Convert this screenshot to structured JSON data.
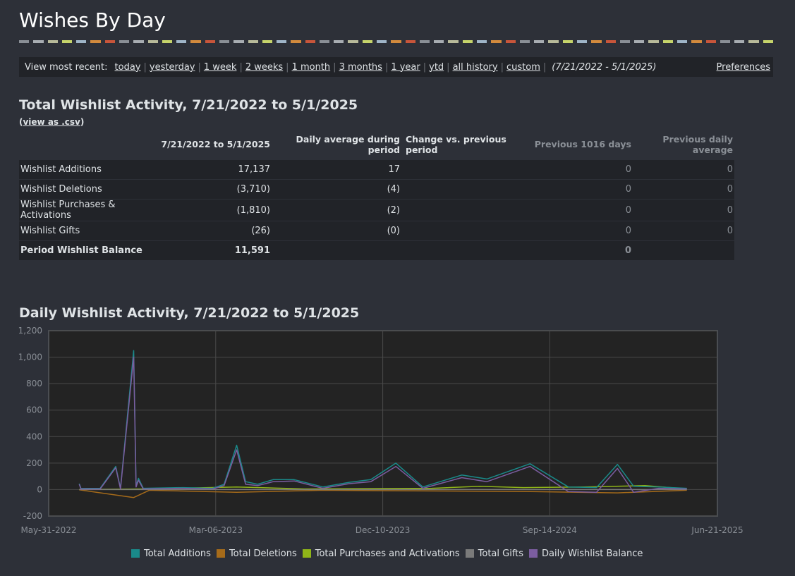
{
  "page": {
    "title": "Wishes By Day",
    "dash_colors": [
      "#8a8f96",
      "#a8adb2",
      "#b8ba9a",
      "#c6d46b",
      "#9fb5c8",
      "#d28a3d",
      "#c8553a",
      "#8a8f96",
      "#a8adb2",
      "#b8ba9a",
      "#c6d46b",
      "#9fb5c8",
      "#d28a3d",
      "#c8553a",
      "#8a8f96",
      "#a8adb2",
      "#b8ba9a",
      "#c6d46b",
      "#9fb5c8",
      "#d28a3d",
      "#c8553a",
      "#8a8f96",
      "#a8adb2",
      "#b8ba9a",
      "#c6d46b",
      "#9fb5c8",
      "#d28a3d",
      "#c8553a",
      "#8a8f96",
      "#a8adb2",
      "#b8ba9a",
      "#c6d46b",
      "#9fb5c8",
      "#d28a3d",
      "#c8553a",
      "#8a8f96",
      "#a8adb2",
      "#b8ba9a",
      "#c6d46b",
      "#9fb5c8",
      "#d28a3d",
      "#c8553a",
      "#8a8f96",
      "#a8adb2",
      "#b8ba9a",
      "#c6d46b",
      "#9fb5c8",
      "#d28a3d",
      "#c8553a",
      "#8a8f96",
      "#a8adb2",
      "#b8ba9a",
      "#c6d46b"
    ]
  },
  "range": {
    "label": "View most recent:",
    "links": [
      "today",
      "yesterday",
      "1 week",
      "2 weeks",
      "1 month",
      "3 months",
      "1 year",
      "ytd",
      "all history",
      "custom"
    ],
    "current": "(7/21/2022 - 5/1/2025)",
    "preferences": "Preferences"
  },
  "total": {
    "heading": "Total Wishlist Activity, 7/21/2022 to 5/1/2025",
    "csv_open": "(",
    "csv_link": "view as .csv",
    "csv_close": ")",
    "headers": [
      "7/21/2022 to 5/1/2025",
      "Daily average during period",
      "Change vs. previous period",
      "Previous 1016 days",
      "Previous daily average"
    ],
    "rows": [
      {
        "label": "Wishlist Additions",
        "period": "17,137",
        "avg": "17",
        "change": "",
        "prev": "0",
        "prev_avg": "0"
      },
      {
        "label": "Wishlist Deletions",
        "period": "(3,710)",
        "avg": "(4)",
        "change": "",
        "prev": "0",
        "prev_avg": "0"
      },
      {
        "label": "Wishlist Purchases & Activations",
        "period": "(1,810)",
        "avg": "(2)",
        "change": "",
        "prev": "0",
        "prev_avg": "0"
      },
      {
        "label": "Wishlist Gifts",
        "period": "(26)",
        "avg": "(0)",
        "change": "",
        "prev": "0",
        "prev_avg": "0"
      },
      {
        "label": "Period Wishlist Balance",
        "period": "11,591",
        "avg": "",
        "change": "",
        "prev": "0",
        "prev_avg": ""
      }
    ]
  },
  "daily": {
    "heading": "Daily Wishlist Activity, 7/21/2022 to 5/1/2025"
  },
  "chart_data": {
    "type": "line",
    "title": "Daily Wishlist Activity, 7/21/2022 to 5/1/2025",
    "ylim": [
      -200,
      1200
    ],
    "yticks": [
      "-200",
      "0",
      "200",
      "400",
      "600",
      "800",
      "1,000",
      "1,200"
    ],
    "ytick_values": [
      -200,
      0,
      200,
      400,
      600,
      800,
      1000,
      1200
    ],
    "xlim": [
      "2022-05-31",
      "2025-06-21"
    ],
    "xticks": [
      "May-31-2022",
      "Mar-06-2023",
      "Dec-10-2023",
      "Sep-14-2024",
      "Jun-21-2025"
    ],
    "xtick_dates": [
      "2022-05-31",
      "2023-03-06",
      "2023-12-10",
      "2024-09-14",
      "2025-06-21"
    ],
    "grid": true,
    "legend_position": "bottom",
    "series": [
      {
        "name": "Total Additions",
        "color": "#1a8a8a",
        "points": [
          [
            "2022-07-21",
            45
          ],
          [
            "2022-07-24",
            8
          ],
          [
            "2022-08-25",
            10
          ],
          [
            "2022-09-20",
            175
          ],
          [
            "2022-09-28",
            10
          ],
          [
            "2022-10-20",
            1050
          ],
          [
            "2022-10-24",
            30
          ],
          [
            "2022-10-28",
            85
          ],
          [
            "2022-11-05",
            10
          ],
          [
            "2023-01-10",
            15
          ],
          [
            "2023-03-01",
            10
          ],
          [
            "2023-03-20",
            40
          ],
          [
            "2023-04-10",
            335
          ],
          [
            "2023-04-25",
            60
          ],
          [
            "2023-05-15",
            40
          ],
          [
            "2023-06-10",
            75
          ],
          [
            "2023-07-15",
            75
          ],
          [
            "2023-09-01",
            20
          ],
          [
            "2023-10-15",
            55
          ],
          [
            "2023-11-20",
            75
          ],
          [
            "2024-01-01",
            200
          ],
          [
            "2024-02-15",
            20
          ],
          [
            "2024-04-20",
            110
          ],
          [
            "2024-06-01",
            80
          ],
          [
            "2024-08-12",
            195
          ],
          [
            "2024-10-15",
            20
          ],
          [
            "2024-12-01",
            15
          ],
          [
            "2025-01-05",
            190
          ],
          [
            "2025-02-01",
            25
          ],
          [
            "2025-03-15",
            20
          ],
          [
            "2025-05-01",
            10
          ]
        ]
      },
      {
        "name": "Total Deletions",
        "color": "#a66b1a",
        "points": [
          [
            "2022-07-21",
            -2
          ],
          [
            "2022-10-20",
            -60
          ],
          [
            "2022-11-15",
            -5
          ],
          [
            "2023-04-10",
            -20
          ],
          [
            "2023-09-01",
            -5
          ],
          [
            "2024-08-12",
            -15
          ],
          [
            "2025-01-05",
            -25
          ],
          [
            "2025-05-01",
            -5
          ]
        ]
      },
      {
        "name": "Total Purchases and Activations",
        "color": "#8fb518",
        "points": [
          [
            "2022-07-21",
            0
          ],
          [
            "2022-11-10",
            5
          ],
          [
            "2023-04-10",
            20
          ],
          [
            "2023-08-01",
            5
          ],
          [
            "2024-03-01",
            10
          ],
          [
            "2024-05-20",
            25
          ],
          [
            "2024-08-01",
            15
          ],
          [
            "2024-11-10",
            20
          ],
          [
            "2025-02-20",
            30
          ],
          [
            "2025-05-01",
            5
          ]
        ]
      },
      {
        "name": "Total Gifts",
        "color": "#7a7a7a",
        "points": [
          [
            "2022-07-21",
            0
          ],
          [
            "2025-05-01",
            0
          ]
        ]
      },
      {
        "name": "Daily Wishlist Balance",
        "color": "#7b5da0",
        "points": [
          [
            "2022-07-21",
            40
          ],
          [
            "2022-07-24",
            5
          ],
          [
            "2022-08-25",
            5
          ],
          [
            "2022-09-20",
            165
          ],
          [
            "2022-09-28",
            5
          ],
          [
            "2022-10-20",
            1000
          ],
          [
            "2022-10-24",
            20
          ],
          [
            "2022-10-28",
            70
          ],
          [
            "2022-11-05",
            5
          ],
          [
            "2023-01-10",
            10
          ],
          [
            "2023-03-01",
            5
          ],
          [
            "2023-03-20",
            30
          ],
          [
            "2023-04-10",
            300
          ],
          [
            "2023-04-25",
            40
          ],
          [
            "2023-05-15",
            30
          ],
          [
            "2023-06-10",
            60
          ],
          [
            "2023-07-15",
            65
          ],
          [
            "2023-09-01",
            10
          ],
          [
            "2023-10-15",
            45
          ],
          [
            "2023-11-20",
            60
          ],
          [
            "2024-01-01",
            175
          ],
          [
            "2024-02-15",
            10
          ],
          [
            "2024-04-20",
            90
          ],
          [
            "2024-06-01",
            60
          ],
          [
            "2024-08-12",
            175
          ],
          [
            "2024-10-15",
            -15
          ],
          [
            "2024-12-01",
            -20
          ],
          [
            "2025-01-05",
            160
          ],
          [
            "2025-02-01",
            -20
          ],
          [
            "2025-03-15",
            10
          ],
          [
            "2025-05-01",
            5
          ]
        ]
      }
    ]
  }
}
